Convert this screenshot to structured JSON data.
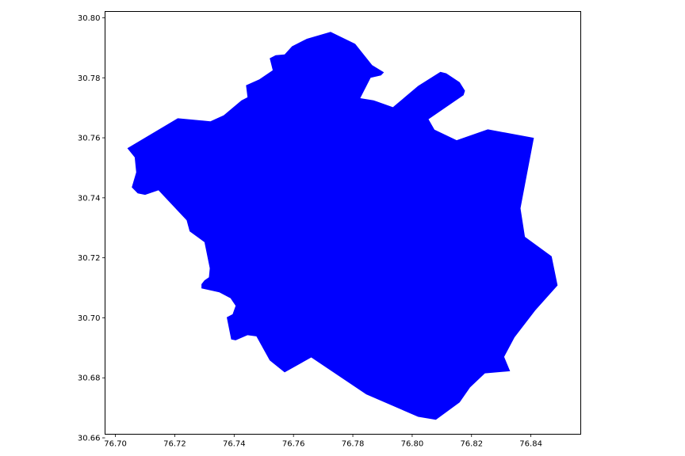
{
  "chart_data": {
    "type": "area",
    "title": "",
    "xlabel": "",
    "ylabel": "",
    "xlim": [
      76.6965,
      76.8568
    ],
    "ylim": [
      30.6612,
      30.8021
    ],
    "grid": false,
    "x_ticks": [
      "76.70",
      "76.72",
      "76.74",
      "76.76",
      "76.78",
      "76.80",
      "76.82",
      "76.84"
    ],
    "x_tick_values": [
      76.7,
      76.72,
      76.74,
      76.76,
      76.78,
      76.8,
      76.82,
      76.84
    ],
    "y_ticks": [
      "30.66",
      "30.68",
      "30.70",
      "30.72",
      "30.74",
      "30.76",
      "30.78",
      "30.80"
    ],
    "y_tick_values": [
      30.66,
      30.68,
      30.7,
      30.72,
      30.74,
      30.76,
      30.78,
      30.8
    ],
    "fill_color": "#0000ff",
    "polygon": [
      [
        76.704,
        30.7565
      ],
      [
        76.721,
        30.7665
      ],
      [
        76.732,
        30.7655
      ],
      [
        76.7365,
        30.7675
      ],
      [
        76.7425,
        30.7725
      ],
      [
        76.7445,
        30.7735
      ],
      [
        76.744,
        30.7775
      ],
      [
        76.7485,
        30.7795
      ],
      [
        76.753,
        30.7825
      ],
      [
        76.752,
        30.7865
      ],
      [
        76.754,
        30.7875
      ],
      [
        76.757,
        30.7878
      ],
      [
        76.7595,
        30.7905
      ],
      [
        76.7645,
        30.793
      ],
      [
        76.7725,
        30.7953
      ],
      [
        76.7808,
        30.7913
      ],
      [
        76.7865,
        30.7842
      ],
      [
        76.7905,
        30.7818
      ],
      [
        76.7895,
        30.7808
      ],
      [
        76.786,
        30.78
      ],
      [
        76.7825,
        30.7732
      ],
      [
        76.787,
        30.7725
      ],
      [
        76.7935,
        30.7702
      ],
      [
        76.802,
        30.7773
      ],
      [
        76.8095,
        30.782
      ],
      [
        76.8115,
        30.7815
      ],
      [
        76.816,
        30.7785
      ],
      [
        76.8178,
        30.7757
      ],
      [
        76.8173,
        30.7742
      ],
      [
        76.8055,
        30.7662
      ],
      [
        76.8075,
        30.7627
      ],
      [
        76.815,
        30.7592
      ],
      [
        76.8255,
        30.7628
      ],
      [
        76.841,
        30.76
      ],
      [
        76.8365,
        30.7365
      ],
      [
        76.838,
        30.727
      ],
      [
        76.847,
        30.7205
      ],
      [
        76.849,
        30.7108
      ],
      [
        76.8415,
        30.7025
      ],
      [
        76.8345,
        30.6935
      ],
      [
        76.831,
        30.687
      ],
      [
        76.833,
        30.6822
      ],
      [
        76.8245,
        30.6815
      ],
      [
        76.8195,
        30.6768
      ],
      [
        76.816,
        30.6718
      ],
      [
        76.808,
        30.666
      ],
      [
        76.802,
        30.667
      ],
      [
        76.7845,
        30.6745
      ],
      [
        76.766,
        30.6868
      ],
      [
        76.757,
        30.6818
      ],
      [
        76.752,
        30.6858
      ],
      [
        76.7475,
        30.6938
      ],
      [
        76.7445,
        30.6942
      ],
      [
        76.7405,
        30.6925
      ],
      [
        76.739,
        30.6928
      ],
      [
        76.7375,
        30.7002
      ],
      [
        76.7395,
        30.7012
      ],
      [
        76.7405,
        30.704
      ],
      [
        76.7388,
        30.7065
      ],
      [
        76.735,
        30.7085
      ],
      [
        76.729,
        30.7098
      ],
      [
        76.729,
        30.7112
      ],
      [
        76.73,
        30.7125
      ],
      [
        76.7315,
        30.7135
      ],
      [
        76.7318,
        30.7165
      ],
      [
        76.73,
        30.7252
      ],
      [
        76.725,
        30.7288
      ],
      [
        76.724,
        30.7325
      ],
      [
        76.7145,
        30.7425
      ],
      [
        76.71,
        30.741
      ],
      [
        76.7075,
        30.7415
      ],
      [
        76.7055,
        30.7435
      ],
      [
        76.707,
        30.7485
      ],
      [
        76.7065,
        30.7535
      ]
    ]
  }
}
